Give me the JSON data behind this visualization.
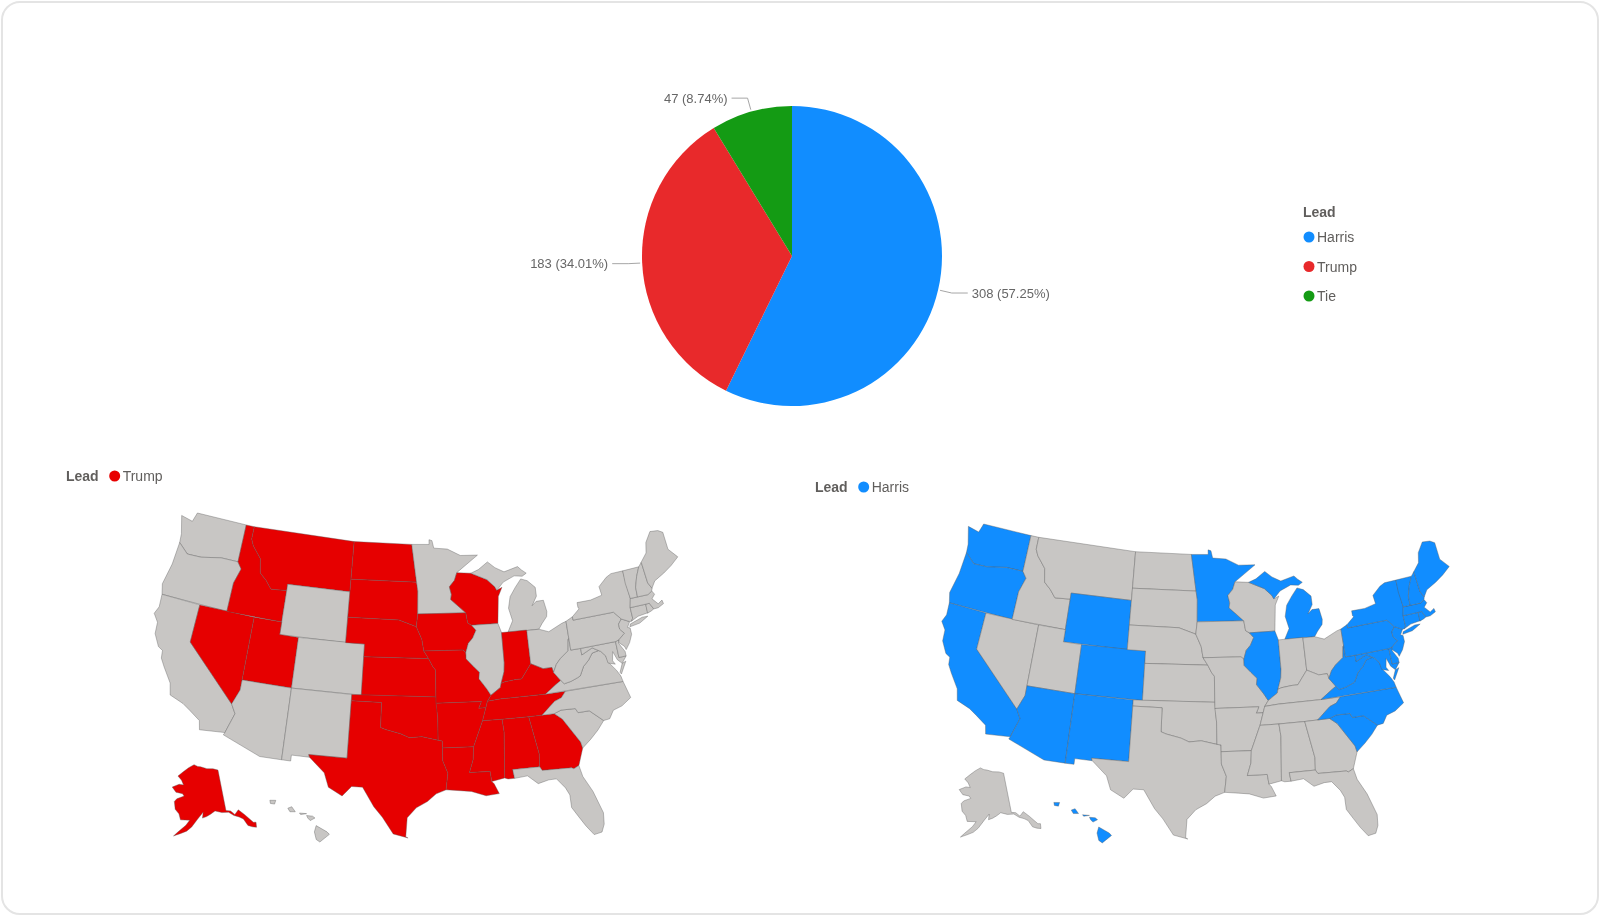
{
  "chart_data": [
    {
      "type": "pie",
      "categories": [
        "Harris",
        "Trump",
        "Tie"
      ],
      "values": [
        308,
        183,
        47
      ],
      "colors": [
        "#118dff",
        "#e8292b",
        "#149b14"
      ],
      "value_labels": [
        "308 (57.25%)",
        "183 (34.01%)",
        "47 (8.74%)"
      ],
      "legend_title": "Lead",
      "legend": "right"
    },
    {
      "type": "other",
      "legend_title": "Lead",
      "legend": "top left",
      "series": [
        {
          "name": "Trump",
          "color": "#e80000"
        }
      ],
      "colors": [
        "#c8c6c4",
        "#c8c6c4",
        "#c8c6c4",
        "#e60000",
        "#e60000",
        "#e60000",
        "#c8c6c4",
        "#e60000",
        "#c8c6c4",
        "#c8c6c4",
        "#c8c6c4",
        "#e60000",
        "#e60000",
        "#e60000",
        "#e60000",
        "#e60000",
        "#e60000",
        "#c8c6c4",
        "#e60000",
        "#e60000",
        "#e60000",
        "#e60000",
        "#e60000",
        "#c8c6c4",
        "#c8c6c4",
        "#e60000",
        "#c8c6c4",
        "#e60000",
        "#e60000",
        "#e60000",
        "#e60000",
        "#e60000",
        "#c8c6c4",
        "#c8c6c4",
        "#c8c6c4",
        "#c8c6c4",
        "#c8c6c4",
        "#c8c6c4",
        "#c8c6c4",
        "#c8c6c4",
        "#c8c6c4",
        "#c8c6c4",
        "#c8c6c4",
        "#c8c6c4",
        "#c8c6c4",
        "#c8c6c4",
        "#c8c6c4",
        "#c8c6c4",
        "#e60000",
        "#c8c6c4"
      ]
    },
    {
      "type": "other",
      "legend_title": "Lead",
      "legend": "top left",
      "series": [
        {
          "name": "Harris",
          "color": "#118dff"
        }
      ],
      "colors": [
        "#118dff",
        "#118dff",
        "#118dff",
        "#c8c6c4",
        "#c8c6c4",
        "#c8c6c4",
        "#118dff",
        "#c8c6c4",
        "#118dff",
        "#118dff",
        "#118dff",
        "#c8c6c4",
        "#c8c6c4",
        "#c8c6c4",
        "#c8c6c4",
        "#c8c6c4",
        "#c8c6c4",
        "#118dff",
        "#c8c6c4",
        "#c8c6c4",
        "#c8c6c4",
        "#c8c6c4",
        "#c8c6c4",
        "#118dff",
        "#118dff",
        "#c8c6c4",
        "#c8c6c4",
        "#c8c6c4",
        "#c8c6c4",
        "#c8c6c4",
        "#c8c6c4",
        "#c8c6c4",
        "#c8c6c4",
        "#118dff",
        "#118dff",
        "#118dff",
        "#118dff",
        "#118dff",
        "#118dff",
        "#118dff",
        "#118dff",
        "#118dff",
        "#118dff",
        "#118dff",
        "#118dff",
        "#118dff",
        "#118dff",
        "#118dff",
        "#c8c6c4",
        "#118dff"
      ]
    }
  ]
}
